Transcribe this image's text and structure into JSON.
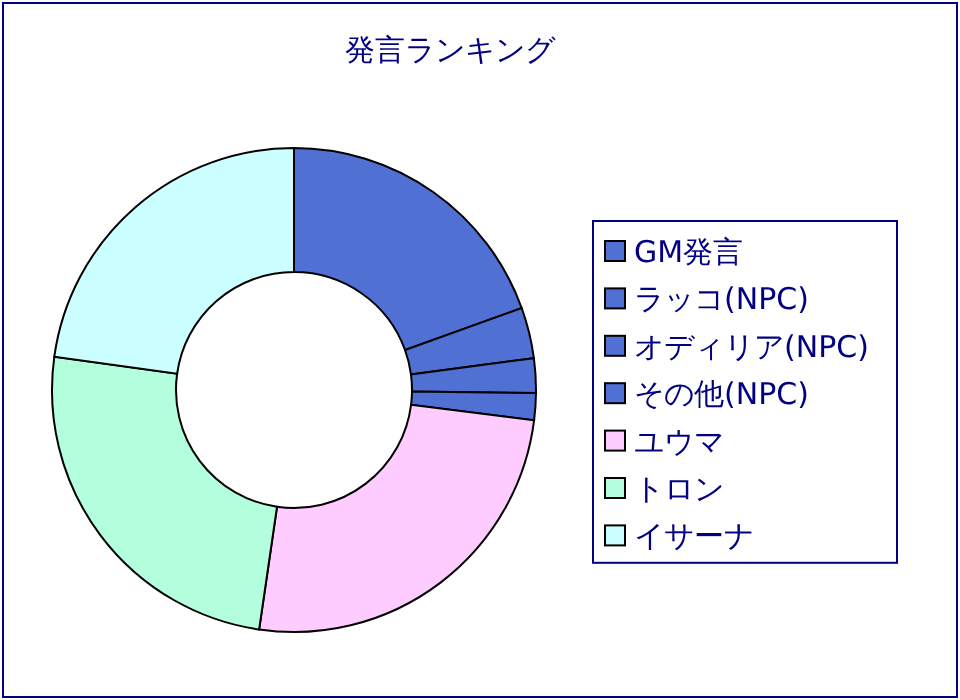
{
  "chart_data": {
    "type": "donut",
    "title": "発言ランキング",
    "categories": [
      "GM発言",
      "ラッコ(NPC)",
      "オディリア(NPC)",
      "その他(NPC)",
      "ユウマ",
      "トロン",
      "イサーナ"
    ],
    "values": [
      19.5,
      3.4,
      2.3,
      1.8,
      25.3,
      24.9,
      22.8
    ],
    "colors": [
      "#5070d4",
      "#5070d4",
      "#5070d4",
      "#5070d4",
      "#ffccff",
      "#b3ffdd",
      "#ccffff"
    ],
    "legend": "right"
  }
}
